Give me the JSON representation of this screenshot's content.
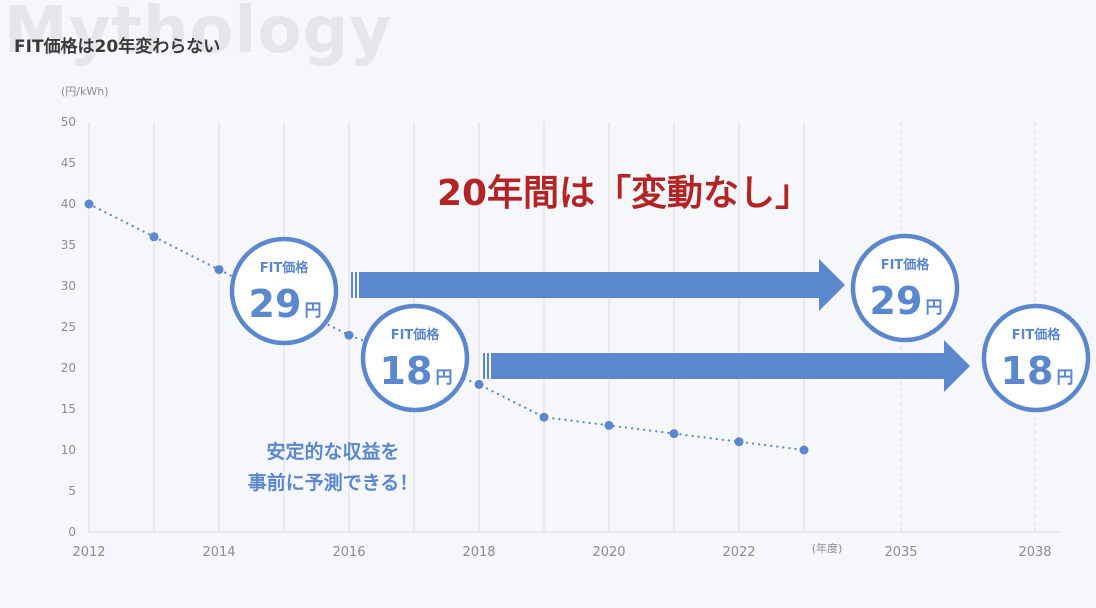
{
  "watermark": "Mythology",
  "title": "FIT価格は20年変わらない",
  "chart_data": {
    "type": "line",
    "title": "FIT価格は20年変わらない",
    "ylabel": "(円/kWh)",
    "xlabel": "(年度)",
    "ylim": [
      0,
      50
    ],
    "yticks": [
      0,
      5,
      10,
      15,
      20,
      25,
      30,
      35,
      40,
      45,
      50
    ],
    "x_tick_labels": [
      "2012",
      "2014",
      "2016",
      "2018",
      "2020",
      "2022",
      "2035",
      "2038"
    ],
    "grid": true,
    "series": [
      {
        "x": [
          2012,
          2013,
          2014,
          2016,
          2018,
          2019,
          2020,
          2021,
          2022,
          2023
        ],
        "values": [
          40,
          36,
          32,
          24,
          18,
          14,
          13,
          12,
          11,
          10
        ]
      }
    ],
    "headline": "20年間は「変動なし」",
    "circle_label": "FIT価格",
    "unit": "円",
    "annotations": [
      {
        "value": 29,
        "start_year": 2015,
        "end_year": 2035
      },
      {
        "value": 18,
        "start_year": 2017,
        "end_year": 2038
      }
    ],
    "note_lines": [
      "安定的な収益を",
      "事前に予測できる！"
    ]
  },
  "colors": {
    "accent": "#5b87cf",
    "headline": "#b52424",
    "line": "#5b87cf",
    "grid": "#dadde2",
    "tick": "#8a8d91"
  }
}
